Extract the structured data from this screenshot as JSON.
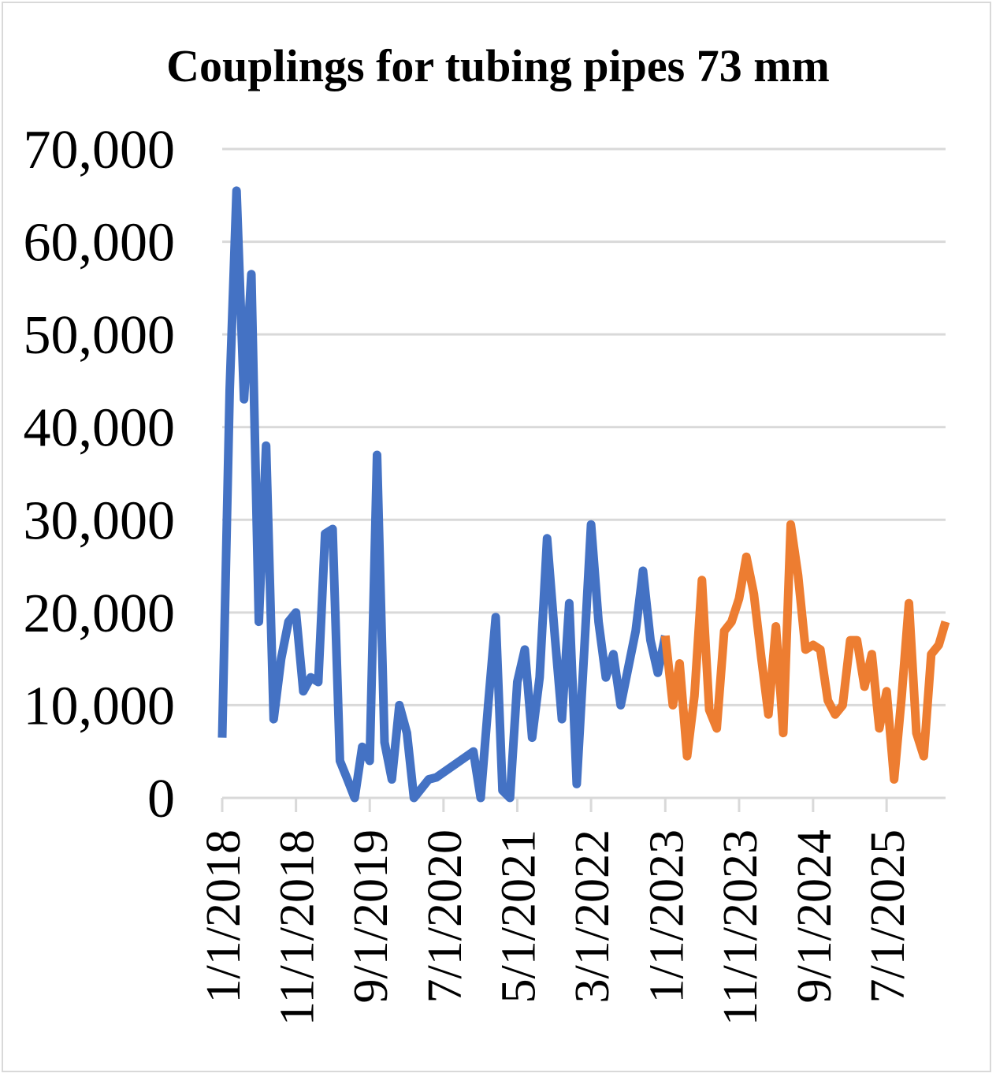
{
  "chart_data": {
    "type": "line",
    "title": "Couplings for tubing pipes 73 mm",
    "xlabel": "",
    "ylabel": "",
    "ylim": [
      0,
      70000
    ],
    "y_ticks": [
      "0",
      "10,000",
      "20,000",
      "30,000",
      "40,000",
      "50,000",
      "60,000",
      "70,000"
    ],
    "x_ticks": [
      "1/1/2018",
      "11/1/2018",
      "9/1/2019",
      "7/1/2020",
      "5/1/2021",
      "3/1/2022",
      "1/1/2023",
      "11/1/2023",
      "9/1/2024",
      "7/1/2025"
    ],
    "grid": true,
    "legend": "none",
    "series": [
      {
        "color": "#4472C4",
        "points": [
          [
            "2018-01-01",
            6500
          ],
          [
            "2018-02-01",
            44000
          ],
          [
            "2018-03-01",
            65500
          ],
          [
            "2018-04-01",
            43000
          ],
          [
            "2018-05-01",
            56500
          ],
          [
            "2018-06-01",
            19000
          ],
          [
            "2018-07-01",
            38000
          ],
          [
            "2018-08-01",
            8500
          ],
          [
            "2018-09-01",
            15000
          ],
          [
            "2018-10-01",
            19000
          ],
          [
            "2018-11-01",
            20000
          ],
          [
            "2018-12-01",
            11500
          ],
          [
            "2019-01-01",
            13000
          ],
          [
            "2019-02-01",
            12500
          ],
          [
            "2019-03-01",
            28500
          ],
          [
            "2019-04-01",
            29000
          ],
          [
            "2019-05-01",
            4000
          ],
          [
            "2019-06-01",
            2000
          ],
          [
            "2019-07-01",
            0
          ],
          [
            "2019-08-01",
            5500
          ],
          [
            "2019-09-01",
            4000
          ],
          [
            "2019-10-01",
            37000
          ],
          [
            "2019-11-01",
            6000
          ],
          [
            "2019-12-01",
            2000
          ],
          [
            "2020-01-01",
            10000
          ],
          [
            "2020-02-01",
            7000
          ],
          [
            "2020-03-01",
            0
          ],
          [
            "2020-04-01",
            1000
          ],
          [
            "2020-05-01",
            2000
          ],
          [
            "2020-06-01",
            2200
          ],
          [
            "2020-11-01",
            5000
          ],
          [
            "2020-12-01",
            0
          ],
          [
            "2021-01-01",
            10000
          ],
          [
            "2021-02-01",
            19500
          ],
          [
            "2021-03-01",
            800
          ],
          [
            "2021-04-01",
            0
          ],
          [
            "2021-05-01",
            12500
          ],
          [
            "2021-06-01",
            16000
          ],
          [
            "2021-07-01",
            6500
          ],
          [
            "2021-08-01",
            13000
          ],
          [
            "2021-09-01",
            28000
          ],
          [
            "2021-10-01",
            18000
          ],
          [
            "2021-11-01",
            8500
          ],
          [
            "2021-12-01",
            21000
          ],
          [
            "2022-01-01",
            1500
          ],
          [
            "2022-02-01",
            16000
          ],
          [
            "2022-03-01",
            29500
          ],
          [
            "2022-04-01",
            19000
          ],
          [
            "2022-05-01",
            13000
          ],
          [
            "2022-06-01",
            15500
          ],
          [
            "2022-07-01",
            10000
          ],
          [
            "2022-08-01",
            14000
          ],
          [
            "2022-09-01",
            18000
          ],
          [
            "2022-10-01",
            24500
          ],
          [
            "2022-11-01",
            17000
          ],
          [
            "2022-12-01",
            13500
          ],
          [
            "2023-01-01",
            17500
          ]
        ]
      },
      {
        "color": "#ED7D31",
        "points": [
          [
            "2023-01-01",
            17500
          ],
          [
            "2023-02-01",
            10000
          ],
          [
            "2023-03-01",
            14500
          ],
          [
            "2023-04-01",
            4500
          ],
          [
            "2023-05-01",
            11000
          ],
          [
            "2023-06-01",
            23500
          ],
          [
            "2023-07-01",
            9500
          ],
          [
            "2023-08-01",
            7500
          ],
          [
            "2023-09-01",
            18000
          ],
          [
            "2023-10-01",
            19000
          ],
          [
            "2023-11-01",
            21500
          ],
          [
            "2023-12-01",
            26000
          ],
          [
            "2024-01-01",
            22000
          ],
          [
            "2024-02-01",
            15000
          ],
          [
            "2024-03-01",
            9000
          ],
          [
            "2024-04-01",
            18500
          ],
          [
            "2024-05-01",
            7000
          ],
          [
            "2024-06-01",
            29500
          ],
          [
            "2024-07-01",
            24000
          ],
          [
            "2024-08-01",
            16000
          ],
          [
            "2024-09-01",
            16500
          ],
          [
            "2024-10-01",
            16000
          ],
          [
            "2024-11-01",
            10500
          ],
          [
            "2024-12-01",
            9000
          ],
          [
            "2025-01-01",
            10000
          ],
          [
            "2025-02-01",
            17000
          ],
          [
            "2025-03-01",
            17000
          ],
          [
            "2025-04-01",
            12000
          ],
          [
            "2025-05-01",
            15500
          ],
          [
            "2025-06-01",
            7500
          ],
          [
            "2025-07-01",
            11500
          ],
          [
            "2025-08-01",
            2000
          ],
          [
            "2025-09-01",
            11000
          ],
          [
            "2025-10-01",
            21000
          ],
          [
            "2025-11-01",
            7000
          ],
          [
            "2025-12-01",
            4500
          ],
          [
            "2026-01-01",
            15500
          ],
          [
            "2026-02-01",
            16500
          ],
          [
            "2026-03-01",
            19000
          ]
        ]
      }
    ]
  }
}
